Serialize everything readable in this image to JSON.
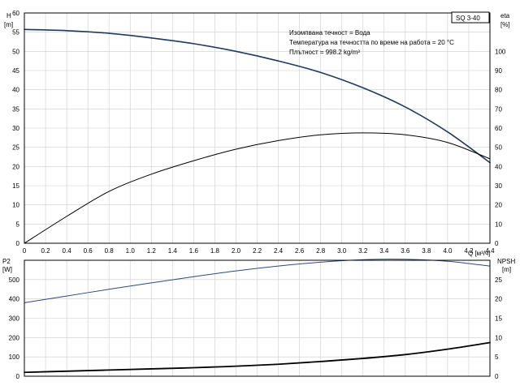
{
  "colors": {
    "head_curve": "#1e3a5f",
    "eta_curve": "#000000",
    "p2_curve": "#2e4a7a",
    "npsh_curve": "#000000",
    "grid": "#cccccc",
    "axis": "#000000"
  },
  "header": {
    "model_badge": "SQ 3-40",
    "info_lines": [
      "Изомпвана течност = Вода",
      "Температура на течността по време на работа = 20 °C",
      "Плътност = 998.2 kg/m³"
    ]
  },
  "chart_data": [
    {
      "type": "line",
      "x_axis": {
        "label": "Q [м³/ч]",
        "range": [
          0,
          4.4
        ],
        "ticks": [
          "0",
          "0.2",
          "0.4",
          "0.6",
          "0.8",
          "1.0",
          "1.2",
          "1.4",
          "1.6",
          "1.8",
          "2.0",
          "2.2",
          "2.4",
          "2.6",
          "2.8",
          "3.0",
          "3.2",
          "3.4",
          "3.6",
          "3.8",
          "4.0",
          "4.2",
          "4.4"
        ]
      },
      "y_left": {
        "label_line1": "H",
        "label_line2": "[m]",
        "range": [
          0,
          60
        ],
        "ticks": [
          "0",
          "5",
          "10",
          "15",
          "20",
          "25",
          "30",
          "35",
          "40",
          "45",
          "50",
          "55",
          "60"
        ]
      },
      "y_right": {
        "label_line1": "eta",
        "label_line2": "[%]",
        "range": [
          0,
          120
        ],
        "ticks": [
          "0",
          "10",
          "20",
          "30",
          "40",
          "50",
          "60",
          "70",
          "80",
          "90",
          "100"
        ]
      },
      "grid": true,
      "series": [
        {
          "axis": "left",
          "x": [
            0,
            0.4,
            0.8,
            1.2,
            1.6,
            2.0,
            2.4,
            2.8,
            3.2,
            3.6,
            4.0,
            4.4
          ],
          "y": [
            55.7,
            55.4,
            54.7,
            53.5,
            52.0,
            50.0,
            47.5,
            44.5,
            40.5,
            35.5,
            29.0,
            21.0
          ]
        },
        {
          "axis": "right",
          "x": [
            0,
            0.4,
            0.8,
            1.2,
            1.6,
            2.0,
            2.4,
            2.8,
            3.2,
            3.6,
            4.0,
            4.4
          ],
          "y": [
            0,
            14,
            27,
            36,
            43,
            49,
            53.5,
            56.5,
            57.5,
            56.5,
            52.5,
            44
          ]
        }
      ]
    },
    {
      "type": "line",
      "x_axis": {
        "range": [
          0,
          4.4
        ]
      },
      "y_left": {
        "label_line1": "P2",
        "label_line2": "[W]",
        "range": [
          0,
          600
        ],
        "ticks": [
          "0",
          "100",
          "200",
          "300",
          "400",
          "500"
        ]
      },
      "y_right": {
        "label_line1": "NPSH",
        "label_line2": "[m]",
        "range": [
          0,
          30
        ],
        "ticks": [
          "0",
          "5",
          "10",
          "15",
          "20",
          "25"
        ]
      },
      "grid": true,
      "series": [
        {
          "axis": "left",
          "x": [
            0,
            0.4,
            0.8,
            1.2,
            1.6,
            2.0,
            2.4,
            2.8,
            3.2,
            3.6,
            4.0,
            4.4
          ],
          "y": [
            380,
            415,
            450,
            483,
            515,
            545,
            570,
            590,
            603,
            605,
            595,
            570
          ]
        },
        {
          "axis": "right",
          "x": [
            0,
            0.4,
            0.8,
            1.2,
            1.6,
            2.0,
            2.4,
            2.8,
            3.2,
            3.6,
            4.0,
            4.4
          ],
          "y": [
            1.0,
            1.3,
            1.6,
            1.9,
            2.2,
            2.6,
            3.1,
            3.8,
            4.6,
            5.6,
            7.0,
            8.7
          ]
        }
      ]
    }
  ]
}
